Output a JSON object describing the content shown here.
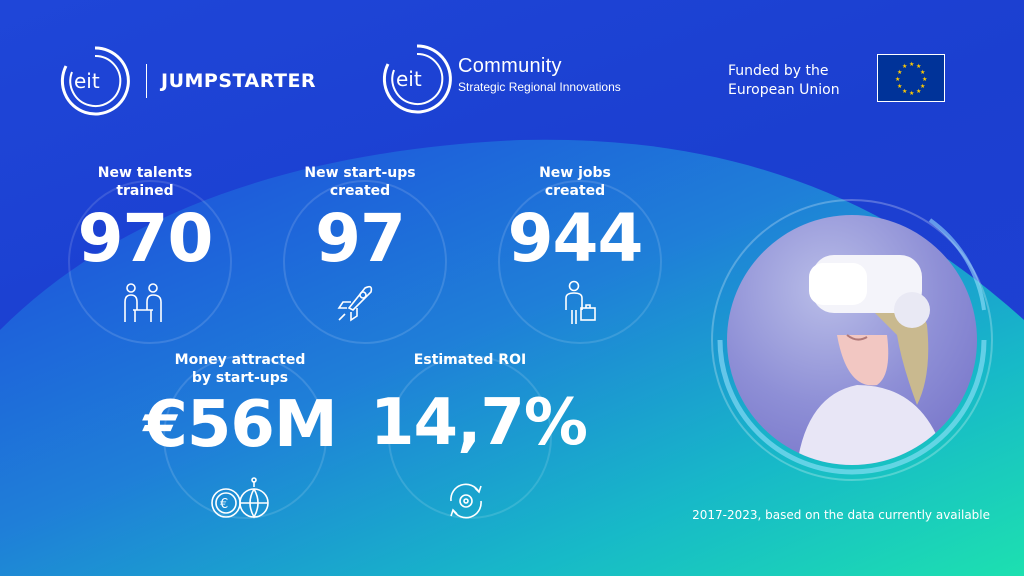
{
  "logos": {
    "jumpstarter_mark": "eit",
    "jumpstarter_name": "JUMPSTARTER",
    "community_mark": "eit",
    "community_title": "Community",
    "community_subtitle": "Strategic Regional Innovations"
  },
  "funding": {
    "line1": "Funded by the",
    "line2": "European Union"
  },
  "stats": [
    {
      "label": "New talents\ntrained",
      "value": "970",
      "icon": "people-meeting-icon"
    },
    {
      "label": "New start-ups\ncreated",
      "value": "97",
      "icon": "rocket-icon"
    },
    {
      "label": "New jobs\ncreated",
      "value": "944",
      "icon": "person-with-briefcase-icon"
    },
    {
      "label": "Money attracted\nby start-ups",
      "value": "€56M",
      "icon": "euro-globe-icon"
    },
    {
      "label": "Estimated ROI",
      "value": "14,7%",
      "icon": "gear-cycle-icon"
    }
  ],
  "footnote": "2017-2023, based on the data currently available",
  "colors": {
    "background_top": "#1f46d8",
    "wave_start": "#1a4de0",
    "wave_end": "#19d6b0"
  }
}
